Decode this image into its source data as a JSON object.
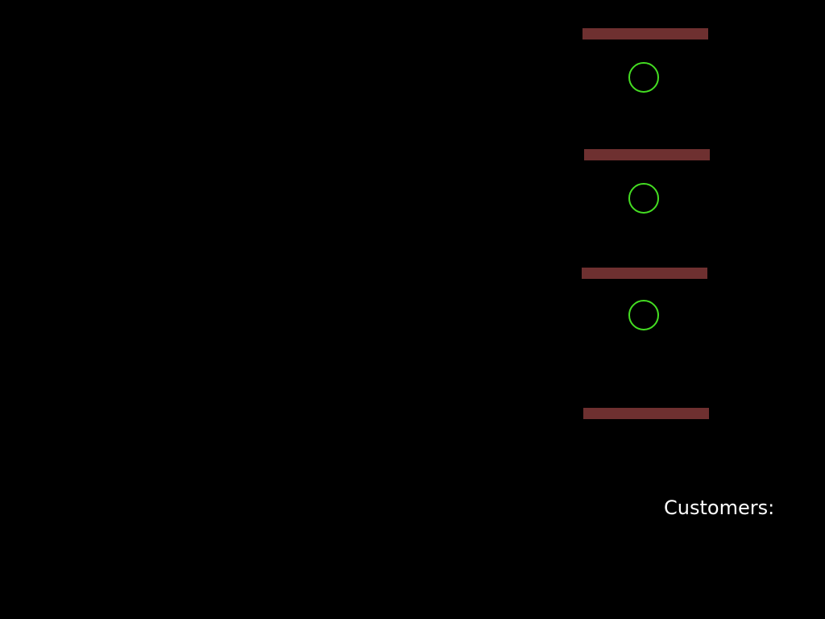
{
  "colors": {
    "background": "#000000",
    "counter": "#6e3030",
    "seat_outline": "#44dd22",
    "text": "#ffffff"
  },
  "counters": [
    {
      "name": "counter-1"
    },
    {
      "name": "counter-2"
    },
    {
      "name": "counter-3"
    },
    {
      "name": "counter-4"
    }
  ],
  "seats": [
    {
      "name": "seat-1",
      "occupied": false
    },
    {
      "name": "seat-2",
      "occupied": false
    },
    {
      "name": "seat-3",
      "occupied": false
    }
  ],
  "hud": {
    "customers_label": "Customers:"
  }
}
